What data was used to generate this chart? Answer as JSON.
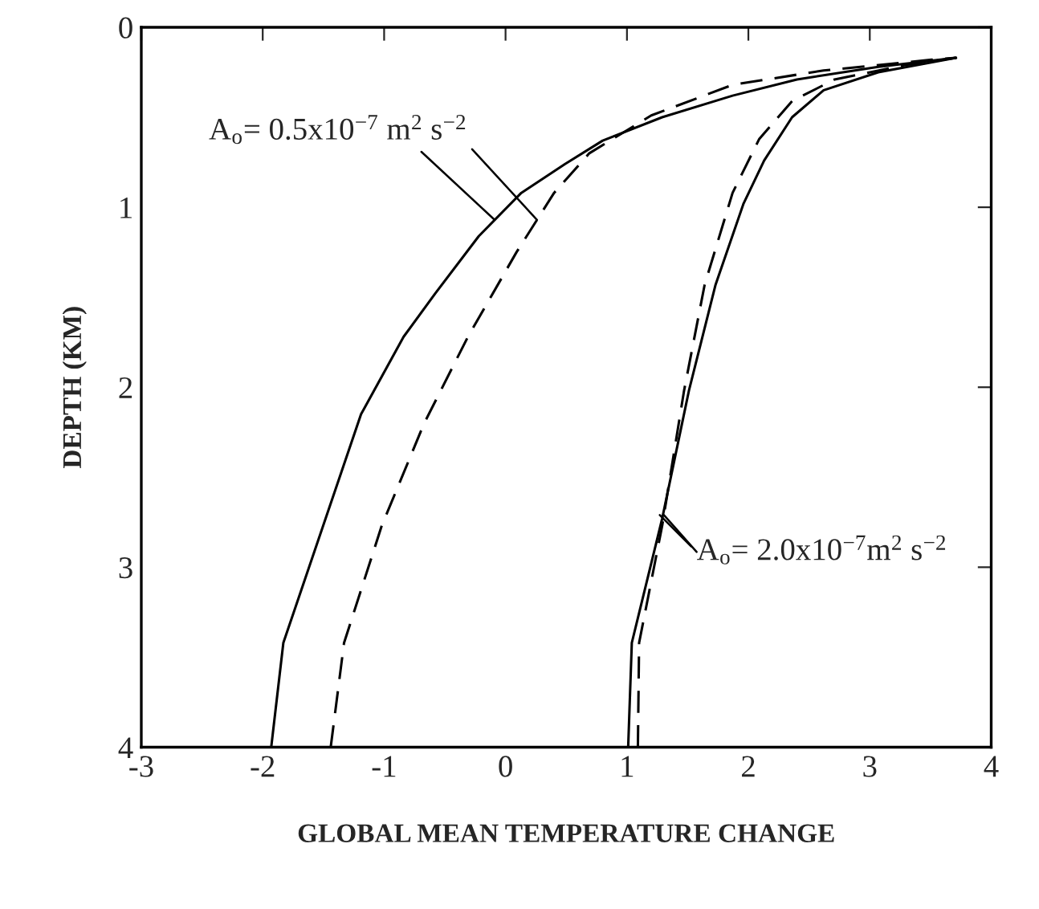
{
  "chart_data": {
    "type": "line",
    "xlabel": "GLOBAL MEAN TEMPERATURE CHANGE",
    "ylabel": "DEPTH (KM)",
    "xlim": [
      -3,
      4
    ],
    "xticks": [
      -3,
      -2,
      -1,
      0,
      1,
      2,
      3,
      4
    ],
    "ylim": [
      4,
      0
    ],
    "yticks": [
      0,
      1,
      2,
      3,
      4
    ],
    "grid": false,
    "legend": false,
    "marker": "none",
    "series": [
      {
        "color": "#000000",
        "line_style": "solid",
        "x": [
          -1.93,
          -1.83,
          -1.19,
          -0.84,
          -0.58,
          -0.22,
          0.13,
          0.49,
          0.8,
          1.29,
          1.87,
          2.4,
          3.07,
          3.71
        ],
        "values": [
          4,
          3.42,
          2.15,
          1.72,
          1.48,
          1.16,
          0.92,
          0.76,
          0.63,
          0.5,
          0.38,
          0.29,
          0.22,
          0.17
        ]
      },
      {
        "color": "#000000",
        "line_style": "dashed",
        "x": [
          -1.44,
          -1.33,
          -1.02,
          -0.67,
          -0.31,
          0.09,
          0.4,
          0.69,
          1.2,
          1.87,
          2.62,
          3.51,
          3.71
        ],
        "values": [
          4,
          3.42,
          2.77,
          2.2,
          1.72,
          1.25,
          0.92,
          0.7,
          0.49,
          0.32,
          0.24,
          0.18,
          0.17
        ]
      },
      {
        "color": "#000000",
        "line_style": "solid",
        "x": [
          1.01,
          1.04,
          1.29,
          1.51,
          1.73,
          1.96,
          2.13,
          2.36,
          2.62,
          3.07,
          3.71
        ],
        "values": [
          4,
          3.42,
          2.73,
          2.02,
          1.43,
          0.98,
          0.74,
          0.5,
          0.35,
          0.25,
          0.17
        ]
      },
      {
        "color": "#000000",
        "line_style": "dashed",
        "x": [
          1.09,
          1.1,
          1.29,
          1.47,
          1.64,
          1.87,
          2.09,
          2.36,
          2.71,
          3.29,
          3.71
        ],
        "values": [
          4,
          3.42,
          2.77,
          2.02,
          1.43,
          0.92,
          0.62,
          0.41,
          0.29,
          0.21,
          0.17
        ]
      }
    ],
    "annotations": [
      {
        "text": "A$_{o}$= 0.5x10$^{−7}$ m$^{2}$ s$^{−2}$",
        "x": -0.09,
        "y": 1.07
      },
      {
        "text": "A$_{o}$= 2.0x10$^{−7}$m$^{2}$ s$^{−2}$",
        "x": 1.27,
        "y": 2.71
      }
    ]
  }
}
